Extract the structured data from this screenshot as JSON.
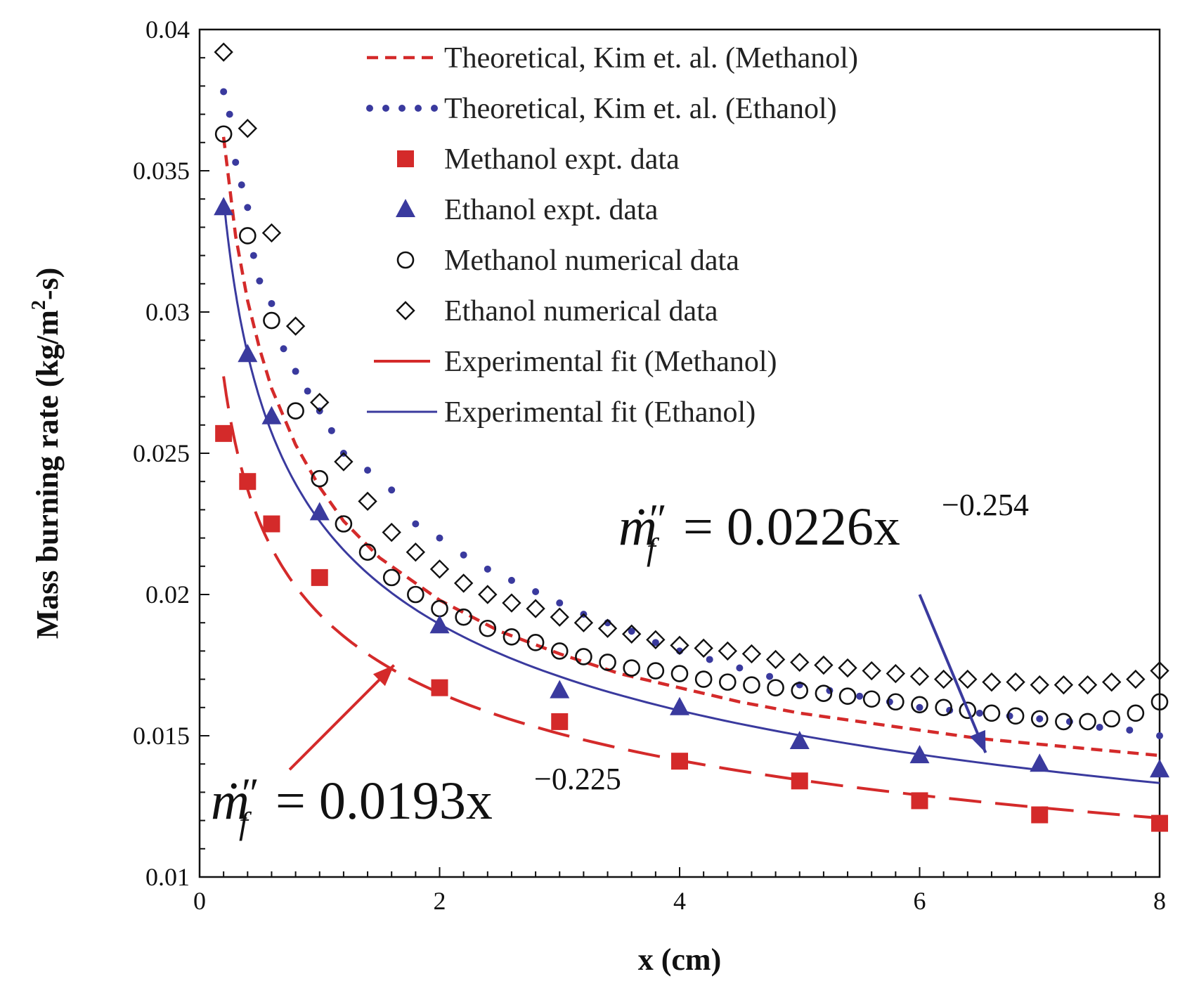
{
  "chart_data": {
    "type": "scatter",
    "title": "",
    "xlabel": "x (cm)",
    "ylabel": "Mass burning rate (kg/m",
    "ylabel_sup": "2",
    "ylabel_tail": "-s)",
    "xlim": [
      0,
      8
    ],
    "ylim": [
      0.01,
      0.04
    ],
    "xticks": [
      0,
      2,
      4,
      6,
      8
    ],
    "xtick_labels": [
      "0",
      "2",
      "4",
      "6",
      "8"
    ],
    "yticks": [
      0.01,
      0.015,
      0.02,
      0.025,
      0.03,
      0.035,
      0.04
    ],
    "ytick_labels": [
      "0.01",
      "0.015",
      "0.02",
      "0.025",
      "0.03",
      "0.035",
      "0.04"
    ],
    "grid": false,
    "legend_position": "top-right",
    "colors": {
      "methanol": "#d42a2a",
      "ethanol": "#3a3a9e",
      "numerical": "#111111"
    },
    "series": [
      {
        "name": "Theoretical, Kim et. al. (Methanol)",
        "style": "short-dash-line",
        "color": "#d42a2a",
        "x": [
          0.2,
          0.3,
          0.4,
          0.5,
          0.6,
          0.8,
          1.0,
          1.2,
          1.5,
          2,
          2.5,
          3,
          3.5,
          4,
          4.5,
          5,
          5.5,
          6,
          6.5,
          7,
          7.5,
          8
        ],
        "y": [
          0.0362,
          0.0327,
          0.0304,
          0.0287,
          0.0273,
          0.0253,
          0.0238,
          0.0226,
          0.0213,
          0.0198,
          0.0187,
          0.0179,
          0.0172,
          0.0167,
          0.0162,
          0.0158,
          0.0155,
          0.0152,
          0.0149,
          0.0147,
          0.0145,
          0.0143
        ]
      },
      {
        "name": "Theoretical, Kim et. al. (Ethanol)",
        "style": "dotted-line",
        "color": "#3a3a9e",
        "x": [
          0.2,
          0.25,
          0.3,
          0.35,
          0.4,
          0.45,
          0.5,
          0.6,
          0.7,
          0.8,
          0.9,
          1.0,
          1.1,
          1.2,
          1.4,
          1.6,
          1.8,
          2.0,
          2.2,
          2.4,
          2.6,
          2.8,
          3.0,
          3.2,
          3.4,
          3.6,
          3.8,
          4.0,
          4.25,
          4.5,
          4.75,
          5.0,
          5.25,
          5.5,
          5.75,
          6.0,
          6.25,
          6.5,
          6.75,
          7.0,
          7.25,
          7.5,
          7.75,
          8.0
        ],
        "y": [
          0.0378,
          0.037,
          0.0353,
          0.0345,
          0.0337,
          0.032,
          0.0311,
          0.0303,
          0.0287,
          0.0279,
          0.0272,
          0.0265,
          0.0258,
          0.025,
          0.0244,
          0.0237,
          0.0225,
          0.022,
          0.0214,
          0.0209,
          0.0205,
          0.0201,
          0.0197,
          0.0193,
          0.019,
          0.0187,
          0.0183,
          0.018,
          0.0177,
          0.0174,
          0.0171,
          0.0168,
          0.0166,
          0.0164,
          0.0162,
          0.016,
          0.0159,
          0.0158,
          0.0157,
          0.0156,
          0.0155,
          0.0153,
          0.0152,
          0.015
        ]
      },
      {
        "name": "Methanol expt. data",
        "style": "filled-square",
        "color": "#d42a2a",
        "x": [
          0.2,
          0.4,
          0.6,
          1,
          2,
          3,
          4,
          5,
          6,
          7,
          8
        ],
        "y": [
          0.0257,
          0.024,
          0.0225,
          0.0206,
          0.0167,
          0.0155,
          0.0141,
          0.0134,
          0.0127,
          0.0122,
          0.0119
        ]
      },
      {
        "name": "Ethanol expt. data",
        "style": "filled-triangle",
        "color": "#3a3a9e",
        "x": [
          0.2,
          0.4,
          0.6,
          1,
          2,
          3,
          4,
          5,
          6,
          7,
          8
        ],
        "y": [
          0.0337,
          0.0285,
          0.0263,
          0.0229,
          0.0189,
          0.0166,
          0.016,
          0.0148,
          0.0143,
          0.014,
          0.0138
        ]
      },
      {
        "name": "Methanol numerical data",
        "style": "open-circle",
        "color": "#111111",
        "x": [
          0.2,
          0.4,
          0.6,
          0.8,
          1.0,
          1.2,
          1.4,
          1.6,
          1.8,
          2.0,
          2.2,
          2.4,
          2.6,
          2.8,
          3.0,
          3.2,
          3.4,
          3.6,
          3.8,
          4.0,
          4.2,
          4.4,
          4.6,
          4.8,
          5.0,
          5.2,
          5.4,
          5.6,
          5.8,
          6.0,
          6.2,
          6.4,
          6.6,
          6.8,
          7.0,
          7.2,
          7.4,
          7.6,
          7.8,
          8.0
        ],
        "y": [
          0.0363,
          0.0327,
          0.0297,
          0.0265,
          0.0241,
          0.0225,
          0.0215,
          0.0206,
          0.02,
          0.0195,
          0.0192,
          0.0188,
          0.0185,
          0.0183,
          0.018,
          0.0178,
          0.0176,
          0.0174,
          0.0173,
          0.0172,
          0.017,
          0.0169,
          0.0168,
          0.0167,
          0.0166,
          0.0165,
          0.0164,
          0.0163,
          0.0162,
          0.0161,
          0.016,
          0.0159,
          0.0158,
          0.0157,
          0.0156,
          0.0155,
          0.0155,
          0.0156,
          0.0158,
          0.0162
        ]
      },
      {
        "name": "Ethanol numerical data",
        "style": "open-diamond",
        "color": "#111111",
        "x": [
          0.2,
          0.4,
          0.6,
          0.8,
          1.0,
          1.2,
          1.4,
          1.6,
          1.8,
          2.0,
          2.2,
          2.4,
          2.6,
          2.8,
          3.0,
          3.2,
          3.4,
          3.6,
          3.8,
          4.0,
          4.2,
          4.4,
          4.6,
          4.8,
          5.0,
          5.2,
          5.4,
          5.6,
          5.8,
          6.0,
          6.2,
          6.4,
          6.6,
          6.8,
          7.0,
          7.2,
          7.4,
          7.6,
          7.8,
          8.0
        ],
        "y": [
          0.0392,
          0.0365,
          0.0328,
          0.0295,
          0.0268,
          0.0247,
          0.0233,
          0.0222,
          0.0215,
          0.0209,
          0.0204,
          0.02,
          0.0197,
          0.0195,
          0.0192,
          0.019,
          0.0188,
          0.0186,
          0.0184,
          0.0182,
          0.0181,
          0.018,
          0.0179,
          0.0177,
          0.0176,
          0.0175,
          0.0174,
          0.0173,
          0.0172,
          0.0171,
          0.017,
          0.017,
          0.0169,
          0.0169,
          0.0168,
          0.0168,
          0.0168,
          0.0169,
          0.017,
          0.0173
        ]
      },
      {
        "name": "Experimental fit (Methanol)",
        "style": "long-dash-line",
        "color": "#d42a2a",
        "fit": {
          "a": 0.0193,
          "b": -0.225,
          "xmin": 0.2,
          "xmax": 8
        }
      },
      {
        "name": "Experimental fit (Ethanol)",
        "style": "solid-line",
        "color": "#3a3a9e",
        "fit": {
          "a": 0.0226,
          "b": -0.254,
          "xmin": 0.2,
          "xmax": 8
        }
      }
    ],
    "annotations": [
      {
        "id": "ethanol-eq",
        "base": "ṁ",
        "prime": "″",
        "sub": "f",
        "eq": "= 0.0226x",
        "exp": "−0.254",
        "color": "#3a3a9e",
        "arrow_from": [
          6.0,
          0.02
        ],
        "arrow_to": [
          6.55,
          0.0144
        ]
      },
      {
        "id": "methanol-eq",
        "base": "ṁ",
        "prime": "″",
        "sub": "f",
        "eq": "= 0.0193x",
        "exp": "−0.225",
        "color": "#d42a2a",
        "arrow_from": [
          0.75,
          0.0138
        ],
        "arrow_to": [
          1.62,
          0.0175
        ]
      }
    ]
  }
}
